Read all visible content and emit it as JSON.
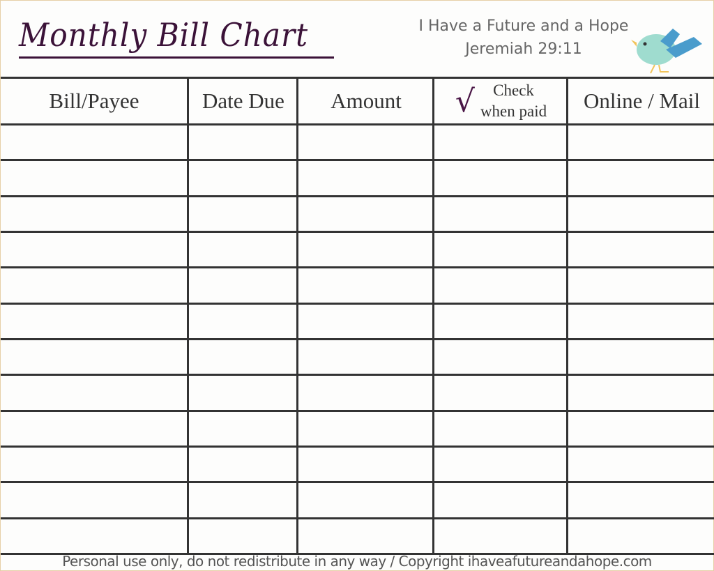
{
  "header": {
    "title": "Monthly Bill Chart",
    "tagline": "I Have a Future and a Hope",
    "verse": "Jeremiah 29:11",
    "logo_icon": "bird-icon"
  },
  "table": {
    "columns": [
      "Bill/Payee",
      "Date Due",
      "Amount",
      "Check when paid",
      "Online / Mail"
    ],
    "check_header_line1": "Check",
    "check_header_line2": "when paid",
    "check_symbol": "√",
    "row_count": 12
  },
  "footer": {
    "text": "Personal use only, do not redistribute in any way / Copyright ihaveafutureandahope.com"
  },
  "colors": {
    "title": "#3b1238",
    "lines": "#333333",
    "bird_body": "#9fdccf",
    "bird_wing": "#4a9ccc"
  }
}
